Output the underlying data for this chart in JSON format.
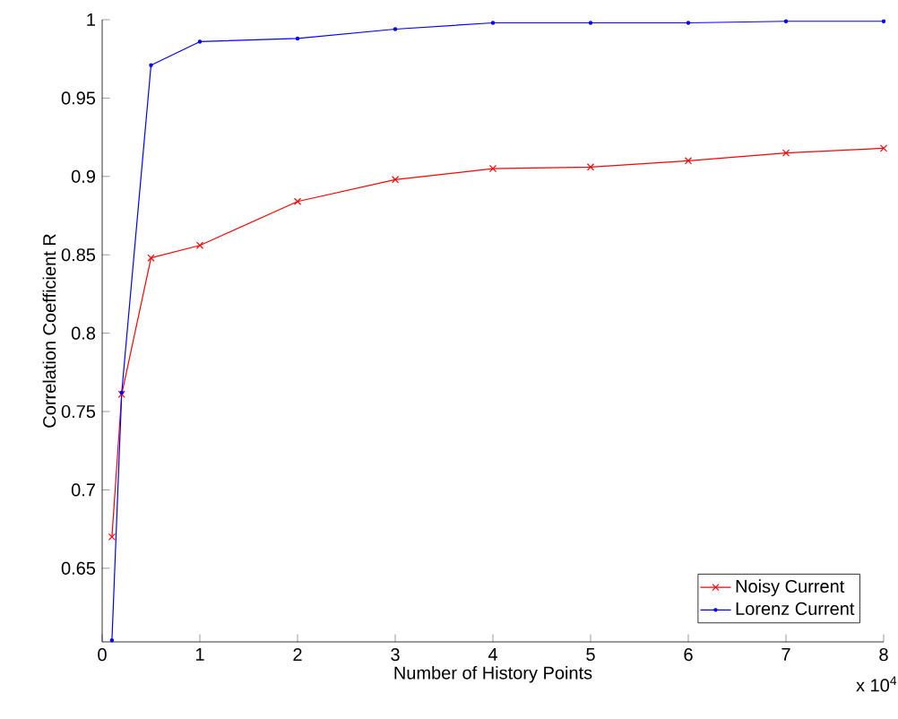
{
  "chart_data": {
    "type": "line",
    "xlabel": "Number of History Points",
    "ylabel": "Correlation Coefficient R",
    "x": [
      0.1,
      0.2,
      0.5,
      1,
      2,
      3,
      4,
      5,
      6,
      7,
      8
    ],
    "series": [
      {
        "name": "Noisy Current",
        "color": "#ff0000",
        "marker": "cross",
        "values": [
          0.67,
          0.761,
          0.848,
          0.856,
          0.884,
          0.898,
          0.905,
          0.906,
          0.91,
          0.915,
          0.918
        ]
      },
      {
        "name": "Lorenz Current",
        "color": "#0000ff",
        "marker": "circle",
        "values": [
          0.604,
          0.762,
          0.971,
          0.986,
          0.988,
          0.994,
          0.998,
          0.998,
          0.998,
          0.999,
          0.999
        ]
      }
    ],
    "xlim": [
      0,
      8
    ],
    "ylim": [
      0.603,
      1
    ],
    "xticks": [
      0,
      1,
      2,
      3,
      4,
      5,
      6,
      7,
      8
    ],
    "yticks": [
      0.65,
      0.7,
      0.75,
      0.8,
      0.85,
      0.9,
      0.95,
      1
    ],
    "annotations": [
      "x 10$^{4}$"
    ],
    "legend": "bottom right",
    "grid": false,
    "line_style": "solid"
  }
}
